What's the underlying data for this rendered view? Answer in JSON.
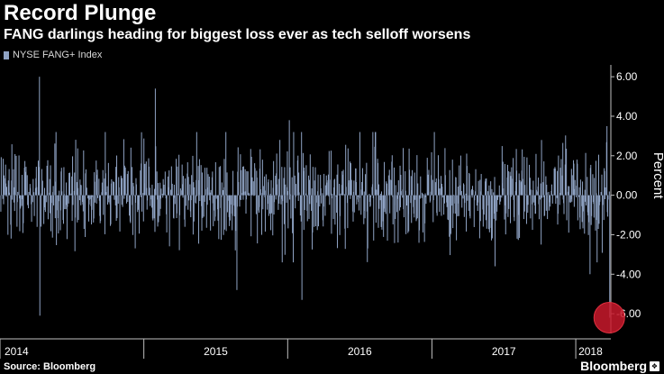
{
  "title": "Record Plunge",
  "subtitle": "FANG darlings heading for biggest loss ever as tech selloff worsens",
  "source": "Source: Bloomberg",
  "brand": "Bloomberg",
  "brand_icon": "bloomberg-logo-icon",
  "colors": {
    "background": "#000000",
    "bars": "#8fa3c4",
    "axis": "#bfbfbf",
    "text": "#ffffff",
    "highlight": "#c9192b"
  },
  "chart_data": {
    "type": "bar",
    "title": "Record Plunge",
    "subtitle": "FANG darlings heading for biggest loss ever as tech selloff worsens",
    "legend": [
      {
        "name": "NYSE FANG+ Index",
        "position": "top-left"
      }
    ],
    "series": [
      {
        "name": "NYSE FANG+ Index",
        "unit": "Percent",
        "frequency": "daily",
        "x_start": "2014-01-02",
        "x_end": "2018-03-27",
        "key_points": [
          {
            "x": "2014-04-10",
            "y": 6.0
          },
          {
            "x": "2014-04-11",
            "y": -6.1
          },
          {
            "x": "2015-01-29",
            "y": 5.4
          },
          {
            "x": "2015-08-24",
            "y": -4.8
          },
          {
            "x": "2016-01-04",
            "y": 3.8
          },
          {
            "x": "2016-02-05",
            "y": -5.3
          },
          {
            "x": "2017-06-09",
            "y": -3.6
          },
          {
            "x": "2018-02-05",
            "y": -4.0
          },
          {
            "x": "2018-03-20",
            "y": 3.5
          },
          {
            "x": "2018-03-27",
            "y": -6.2
          }
        ]
      }
    ],
    "highlight": {
      "x": "2018-03-27",
      "y": -6.2,
      "label": "biggest loss ever"
    },
    "x_axis": {
      "type": "date",
      "range": [
        "2014-01-01",
        "2018-03-31"
      ],
      "tick_labels": [
        "2014",
        "2015",
        "2016",
        "2017",
        "2018"
      ],
      "tick_positions": [
        "2014-01-01",
        "2015-01-01",
        "2016-01-01",
        "2017-01-01",
        "2018-01-01"
      ]
    },
    "y_axis": {
      "label": "Percent",
      "range": [
        -7.0,
        6.6
      ],
      "ticks": [
        6,
        4,
        2,
        0,
        -2,
        -4,
        -6
      ],
      "tick_labels": [
        "6.00",
        "4.00",
        "2.00",
        "0.00",
        "-2.00",
        "-4.00",
        "-6.00"
      ],
      "position": "right"
    },
    "grid": false
  }
}
